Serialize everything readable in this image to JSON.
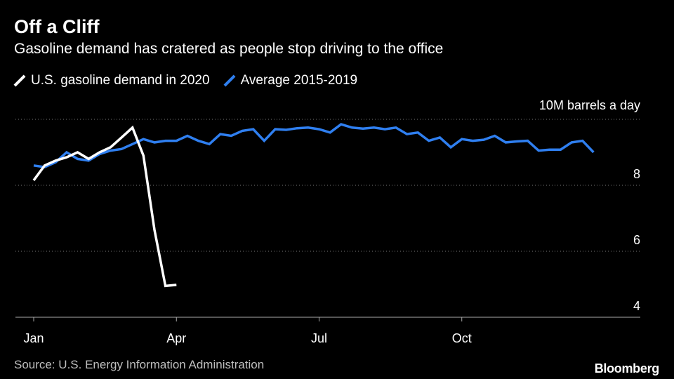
{
  "title": "Off a Cliff",
  "subtitle": "Gasoline demand has cratered as people stop driving to the office",
  "source": "Source: U.S. Energy Information Administration",
  "brand": "Bloomberg",
  "colors": {
    "background": "#000000",
    "series_2020": "#ffffff",
    "series_avg": "#2f7ff0",
    "grid": "#777777",
    "axis": "#aaaaaa"
  },
  "chart_data": {
    "type": "line",
    "title": "Off a Cliff",
    "ylabel": "10M barrels a day",
    "unit_label": "10M barrels a day",
    "xlabel": "",
    "x_unit": "week of year",
    "ylim": [
      4,
      10
    ],
    "xlim": [
      1,
      53
    ],
    "yticks": [
      {
        "value": 4,
        "label": "4"
      },
      {
        "value": 6,
        "label": "6"
      },
      {
        "value": 8,
        "label": "8"
      },
      {
        "value": 10,
        "label": ""
      }
    ],
    "xticks": [
      {
        "value": 1,
        "label": "Jan"
      },
      {
        "value": 14,
        "label": "Apr"
      },
      {
        "value": 27,
        "label": "Jul"
      },
      {
        "value": 40,
        "label": "Oct"
      }
    ],
    "grid": true,
    "legend": "top-left",
    "series": [
      {
        "name": "U.S. gasoline demand in 2020",
        "color": "#ffffff",
        "x": [
          1,
          2,
          3,
          4,
          5,
          6,
          7,
          8,
          9,
          10,
          11,
          12,
          13,
          14,
          15
        ],
        "values": [
          8.15,
          8.6,
          8.75,
          8.85,
          9.0,
          8.8,
          9.0,
          9.15,
          9.45,
          9.75,
          8.9,
          6.65,
          4.95,
          4.98,
          null
        ]
      },
      {
        "name": "Average 2015-2019",
        "color": "#2f7ff0",
        "x": [
          1,
          2,
          3,
          4,
          5,
          6,
          7,
          8,
          9,
          10,
          11,
          12,
          13,
          14,
          15,
          16,
          17,
          18,
          19,
          20,
          21,
          22,
          23,
          24,
          25,
          26,
          27,
          28,
          29,
          30,
          31,
          32,
          33,
          34,
          35,
          36,
          37,
          38,
          39,
          40,
          41,
          42,
          43,
          44,
          45,
          46,
          47,
          48,
          49,
          50,
          51,
          52,
          53
        ],
        "values": [
          8.6,
          8.55,
          8.7,
          9.0,
          8.8,
          8.75,
          8.95,
          9.05,
          9.1,
          9.25,
          9.4,
          9.3,
          9.35,
          9.35,
          9.5,
          9.35,
          9.25,
          9.55,
          9.5,
          9.65,
          9.7,
          9.35,
          9.7,
          9.68,
          9.73,
          9.75,
          9.7,
          9.6,
          9.85,
          9.75,
          9.72,
          9.75,
          9.7,
          9.75,
          9.55,
          9.6,
          9.35,
          9.45,
          9.15,
          9.4,
          9.35,
          9.38,
          9.5,
          9.3,
          9.33,
          9.35,
          9.05,
          9.08,
          9.08,
          9.3,
          9.35,
          9.0,
          null
        ]
      }
    ]
  }
}
